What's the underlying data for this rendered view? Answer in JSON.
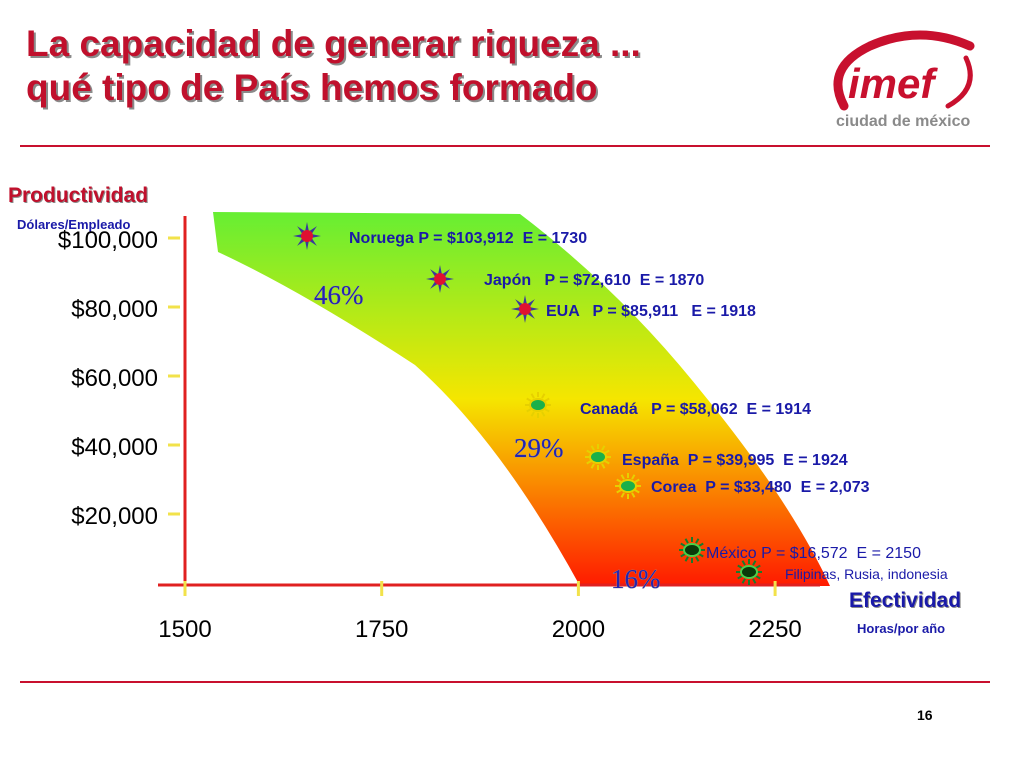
{
  "slide": {
    "title_line1": "La capacidad de generar riqueza ...",
    "title_line2": "qué tipo de País hemos formado",
    "logo_text": "imef",
    "logo_subtitle": "ciudad de méxico",
    "page_number": "16"
  },
  "colors": {
    "title": "#c0102c",
    "rule": "#c8102e",
    "axis": "#e02020",
    "label_blue": "#1a1aa8",
    "band_top": "#66ee33",
    "band_mid": "#f5e600",
    "band_bottom": "#ff1a00"
  },
  "chart_data": {
    "type": "scatter",
    "ylabel": "Productividad",
    "ylabel_sub": "Dólares/Empleado",
    "xlabel": "Efectividad",
    "xlabel_sub": "Horas/por año",
    "x_ticks": [
      "1500",
      "1750",
      "2000",
      "2250"
    ],
    "y_ticks": [
      "$20,000",
      "$40,000",
      "$60,000",
      "$80,000",
      "$100,000"
    ],
    "xlim": [
      1500,
      2250
    ],
    "ylim": [
      0,
      100000
    ],
    "bands": [
      {
        "label": "46%"
      },
      {
        "label": "29%"
      },
      {
        "label": "16%"
      }
    ],
    "points": [
      {
        "label": "Noruega P = $103,912  E = 1730",
        "marker": "star"
      },
      {
        "label": "Japón   P = $72,610  E = 1870",
        "marker": "star"
      },
      {
        "label": "EUA   P = $85,911   E = 1918",
        "marker": "star"
      },
      {
        "label": "Canadá   P = $58,062  E = 1914",
        "marker": "sun"
      },
      {
        "label": "España  P = $39,995  E = 1924",
        "marker": "sun"
      },
      {
        "label": "Corea  P = $33,480  E = 2,073",
        "marker": "sun"
      },
      {
        "label": "México P = $16,572  E = 2150",
        "marker": "sun-dark"
      },
      {
        "label": "Filipinas, Rusia, indonesia",
        "marker": "sun-dark"
      }
    ]
  }
}
